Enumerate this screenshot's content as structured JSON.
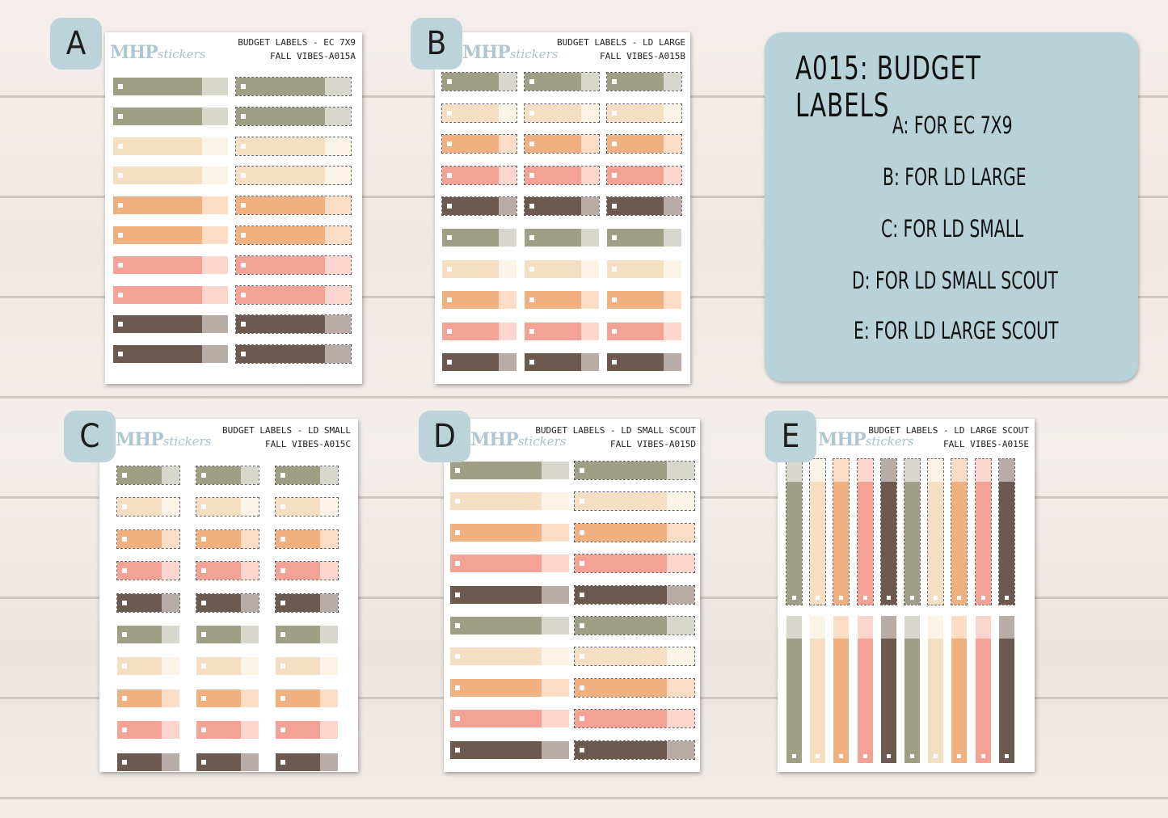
{
  "brand": {
    "logo_bold": "MHP",
    "logo_script": "stickers"
  },
  "colors": {
    "sage": "#9f9f86",
    "sage_end": "#d7d7cc",
    "cream": "#f5dfc2",
    "cream_end": "#fbf3e6",
    "orange": "#f0b07f",
    "orange_end": "#fbdcc4",
    "pink": "#f3a295",
    "pink_end": "#fcd5cd",
    "brown": "#6c5a50",
    "brown_end": "#b9aca6",
    "info_bg": "#b9d2da"
  },
  "info_panel": {
    "title": "A015: BUDGET LABELS",
    "lines": [
      "A: FOR EC 7X9",
      "B: FOR LD LARGE",
      "C: FOR LD SMALL",
      "D: FOR LD SMALL SCOUT",
      "E: FOR LD LARGE SCOUT"
    ]
  },
  "sheets": [
    {
      "badge": "A",
      "title_line1": "BUDGET LABELS - EC 7X9",
      "title_line2": "FALL VIBES-A015A"
    },
    {
      "badge": "B",
      "title_line1": "BUDGET LABELS - LD LARGE",
      "title_line2": "FALL VIBES-A015B"
    },
    {
      "badge": "C",
      "title_line1": "BUDGET LABELS - LD SMALL",
      "title_line2": "FALL VIBES-A015C"
    },
    {
      "badge": "D",
      "title_line1": "BUDGET LABELS - LD SMALL SCOUT",
      "title_line2": "FALL VIBES-A015D"
    },
    {
      "badge": "E",
      "title_line1": "BUDGET LABELS - LD LARGE SCOUT",
      "title_line2": "FALL VIBES-A015E"
    }
  ],
  "label_color_sequence": [
    "sage",
    "sage",
    "cream",
    "cream",
    "orange",
    "orange",
    "pink",
    "pink",
    "brown",
    "brown"
  ],
  "label_color_sequence_b": [
    "sage",
    "cream",
    "orange",
    "pink",
    "brown",
    "sage",
    "cream",
    "orange",
    "pink",
    "brown"
  ],
  "vertical_color_sequence": [
    "sage",
    "cream",
    "orange",
    "pink",
    "brown",
    "sage",
    "cream",
    "orange",
    "pink",
    "brown"
  ]
}
